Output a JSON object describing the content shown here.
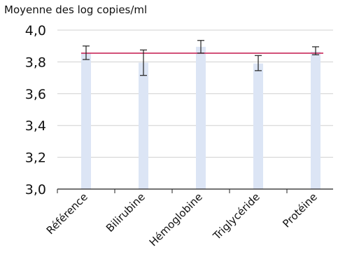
{
  "chart_data": {
    "type": "bar",
    "title": "",
    "xlabel": "",
    "ylabel": "Moyenne des log copies/ml",
    "categories": [
      "Référence",
      "Bilirubine",
      "Hémoglobine",
      "Triglycéride",
      "Protéine"
    ],
    "values": [
      3.855,
      3.795,
      3.895,
      3.79,
      3.865
    ],
    "error_low": [
      3.815,
      3.715,
      3.855,
      3.745,
      3.845
    ],
    "error_high": [
      3.9,
      3.875,
      3.935,
      3.84,
      3.895
    ],
    "reference_line": 3.855,
    "ylim": [
      3.0,
      4.0
    ],
    "yticks": [
      "3,0",
      "3,2",
      "3,4",
      "3,6",
      "3,8",
      "4,0"
    ],
    "ytick_values": [
      3.0,
      3.2,
      3.4,
      3.6,
      3.8,
      4.0
    ],
    "grid": true,
    "legend": "none",
    "colors": {
      "bar": "#dce5f5",
      "reference_line": "#c8285a",
      "error_bar": "#222222",
      "grid": "#d0d0d0",
      "axis": "#222222"
    }
  }
}
